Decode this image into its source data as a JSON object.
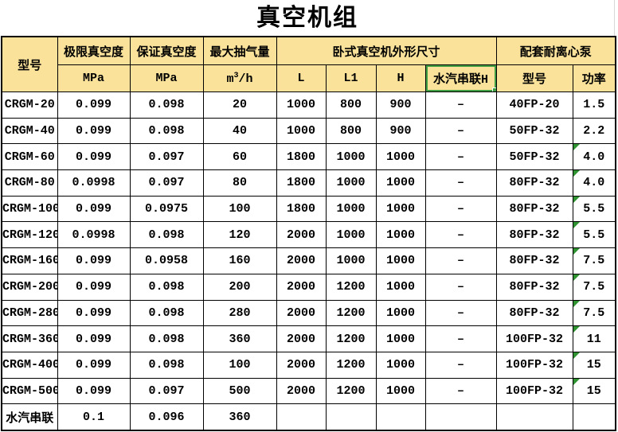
{
  "title": "真空机组",
  "colors": {
    "header_bg": "#FAE29A",
    "selection_green": "#3F9E41",
    "flag_green": "#2E9330",
    "grid": "#000000"
  },
  "table": {
    "header": {
      "model": "型号",
      "ultimate_vacuum": "极限真空度",
      "guaranteed_vacuum": "保证真空度",
      "max_capacity": "最大抽气量",
      "dims_group": "卧式真空机外形尺寸",
      "pump_group": "配套耐离心泵",
      "unit_mpa_1": "MPa",
      "unit_mpa_2": "MPa",
      "unit_m3h": "m³/h",
      "dim_l": "L",
      "dim_l1": "L1",
      "dim_h": "H",
      "steam_series_h": "水汽串联H",
      "pump_model": "型号",
      "pump_power": "功率"
    },
    "rows": [
      {
        "model": "CRGM-20",
        "ultimate": "0.099",
        "guaranteed": "0.098",
        "capacity": "20",
        "L": "1000",
        "L1": "800",
        "H": "900",
        "steam_h": "–",
        "pump": "40FP-20",
        "power": "1.5",
        "error_flag": false
      },
      {
        "model": "CRGM-40",
        "ultimate": "0.099",
        "guaranteed": "0.098",
        "capacity": "40",
        "L": "1000",
        "L1": "800",
        "H": "900",
        "steam_h": "–",
        "pump": "50FP-32",
        "power": "2.2",
        "error_flag": false
      },
      {
        "model": "CRGM-60",
        "ultimate": "0.099",
        "guaranteed": "0.097",
        "capacity": "60",
        "L": "1800",
        "L1": "1000",
        "H": "1000",
        "steam_h": "–",
        "pump": "50FP-32",
        "power": "4.0",
        "error_flag": true
      },
      {
        "model": "CRGM-80",
        "ultimate": "0.0998",
        "guaranteed": "0.097",
        "capacity": "80",
        "L": "1800",
        "L1": "1000",
        "H": "1000",
        "steam_h": "–",
        "pump": "80FP-32",
        "power": "4.0",
        "error_flag": true
      },
      {
        "model": "CRGM-100",
        "ultimate": "0.099",
        "guaranteed": "0.0975",
        "capacity": "100",
        "L": "1800",
        "L1": "1000",
        "H": "1000",
        "steam_h": "–",
        "pump": "80FP-32",
        "power": "5.5",
        "error_flag": true
      },
      {
        "model": "CRGM-120",
        "ultimate": "0.0998",
        "guaranteed": "0.098",
        "capacity": "120",
        "L": "2000",
        "L1": "1000",
        "H": "1000",
        "steam_h": "–",
        "pump": "80FP-32",
        "power": "5.5",
        "error_flag": true
      },
      {
        "model": "CRGM-160",
        "ultimate": "0.099",
        "guaranteed": "0.0958",
        "capacity": "160",
        "L": "2000",
        "L1": "1000",
        "H": "1000",
        "steam_h": "–",
        "pump": "80FP-32",
        "power": "7.5",
        "error_flag": true
      },
      {
        "model": "CRGM-200",
        "ultimate": "0.099",
        "guaranteed": "0.098",
        "capacity": "200",
        "L": "2000",
        "L1": "1200",
        "H": "1000",
        "steam_h": "–",
        "pump": "80FP-32",
        "power": "7.5",
        "error_flag": true
      },
      {
        "model": "CRGM-280",
        "ultimate": "0.099",
        "guaranteed": "0.098",
        "capacity": "280",
        "L": "2000",
        "L1": "1200",
        "H": "1000",
        "steam_h": "–",
        "pump": "80FP-32",
        "power": "7.5",
        "error_flag": true
      },
      {
        "model": "CRGM-360",
        "ultimate": "0.099",
        "guaranteed": "0.098",
        "capacity": "360",
        "L": "2000",
        "L1": "1200",
        "H": "1000",
        "steam_h": "–",
        "pump": "100FP-32",
        "power": "11",
        "error_flag": true
      },
      {
        "model": "CRGM-400",
        "ultimate": "0.099",
        "guaranteed": "0.098",
        "capacity": "100",
        "L": "2000",
        "L1": "1200",
        "H": "1000",
        "steam_h": "–",
        "pump": "100FP-32",
        "power": "15",
        "error_flag": true
      },
      {
        "model": "CRGM-500",
        "ultimate": "0.099",
        "guaranteed": "0.097",
        "capacity": "500",
        "L": "2000",
        "L1": "1200",
        "H": "1000",
        "steam_h": "–",
        "pump": "100FP-32",
        "power": "15",
        "error_flag": true
      },
      {
        "model": "水汽串联",
        "ultimate": "0.1",
        "guaranteed": "0.096",
        "capacity": "360",
        "L": "",
        "L1": "",
        "H": "",
        "steam_h": "",
        "pump": "",
        "power": "",
        "error_flag": false
      }
    ]
  },
  "selection": {
    "selected_cell_label": "水汽串联H"
  }
}
